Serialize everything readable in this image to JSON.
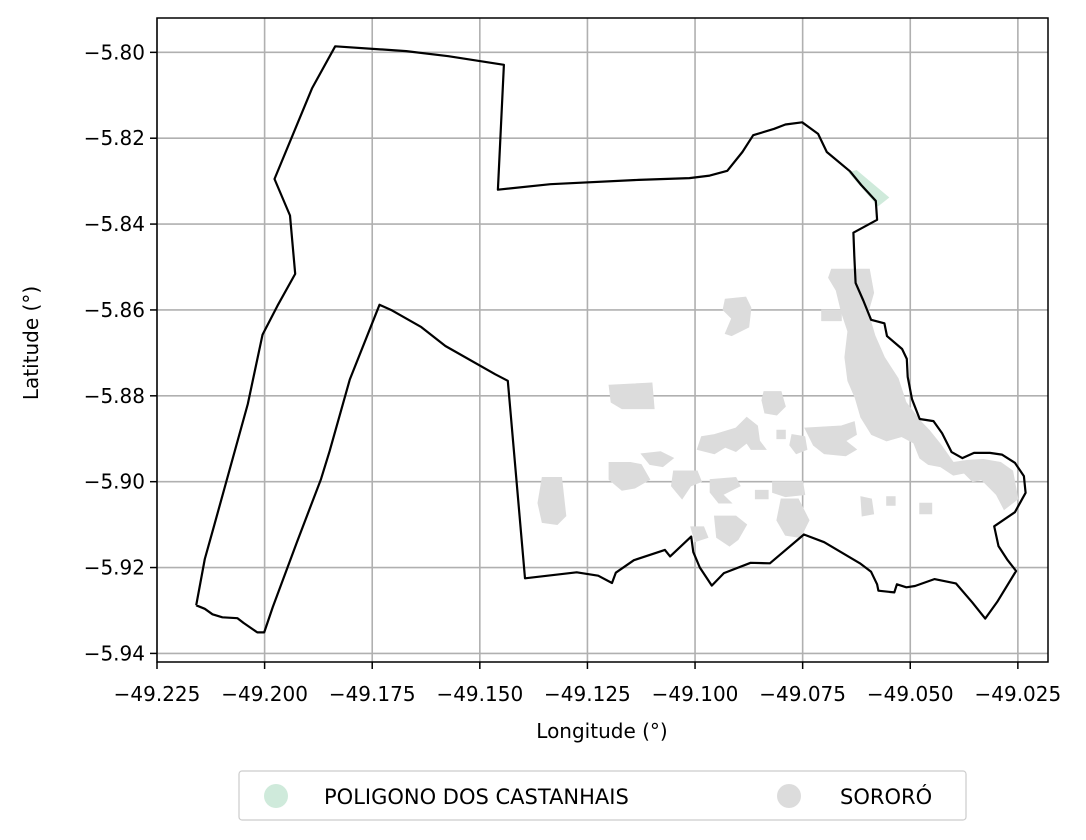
{
  "chart_data": {
    "type": "map",
    "xlabel": "Longitude (°)",
    "ylabel": "Latitude (°)",
    "xlim": [
      -49.225,
      -49.018
    ],
    "ylim": [
      -5.942,
      -5.792
    ],
    "x_ticks": [
      -49.225,
      -49.2,
      -49.175,
      -49.15,
      -49.125,
      -49.1,
      -49.075,
      -49.05,
      -49.025
    ],
    "x_tick_labels": [
      "−49.225",
      "−49.200",
      "−49.175",
      "−49.150",
      "−49.125",
      "−49.100",
      "−49.075",
      "−49.050",
      "−49.025"
    ],
    "y_ticks": [
      -5.8,
      -5.82,
      -5.84,
      -5.86,
      -5.88,
      -5.9,
      -5.92,
      -5.94
    ],
    "y_tick_labels": [
      "−5.80",
      "−5.82",
      "−5.84",
      "−5.86",
      "−5.88",
      "−5.90",
      "−5.92",
      "−5.94"
    ],
    "grid": true,
    "legend_placement": "bottom-center-outside",
    "legend": [
      {
        "label": "POLIGONO DOS CASTANHAIS",
        "color": "#cfeadb"
      },
      {
        "label": "SORORÓ",
        "color": "#dcdcdc"
      }
    ],
    "boundary_color": "#000000",
    "boundary": [
      [
        -49.2159,
        -5.9288
      ],
      [
        -49.2139,
        -5.9296
      ],
      [
        -49.2121,
        -5.9309
      ],
      [
        -49.2098,
        -5.9316
      ],
      [
        -49.2063,
        -5.9318
      ],
      [
        -49.2049,
        -5.9329
      ],
      [
        -49.2017,
        -5.9351
      ],
      [
        -49.2001,
        -5.9351
      ],
      [
        -49.1981,
        -5.9292
      ],
      [
        -49.1925,
        -5.9141
      ],
      [
        -49.1869,
        -5.8994
      ],
      [
        -49.1849,
        -5.8929
      ],
      [
        -49.1802,
        -5.8762
      ],
      [
        -49.1733,
        -5.8588
      ],
      [
        -49.1704,
        -5.8601
      ],
      [
        -49.1636,
        -5.864
      ],
      [
        -49.158,
        -5.8684
      ],
      [
        -49.1464,
        -5.875
      ],
      [
        -49.1435,
        -5.8765
      ],
      [
        -49.1395,
        -5.9225
      ],
      [
        -49.1275,
        -5.9211
      ],
      [
        -49.1225,
        -5.9219
      ],
      [
        -49.1193,
        -5.9236
      ],
      [
        -49.1184,
        -5.9212
      ],
      [
        -49.1142,
        -5.9183
      ],
      [
        -49.107,
        -5.9159
      ],
      [
        -49.1058,
        -5.9174
      ],
      [
        -49.1009,
        -5.9128
      ],
      [
        -49.1004,
        -5.9164
      ],
      [
        -49.0989,
        -5.92
      ],
      [
        -49.0961,
        -5.9242
      ],
      [
        -49.0933,
        -5.9213
      ],
      [
        -49.0871,
        -5.9189
      ],
      [
        -49.0826,
        -5.919
      ],
      [
        -49.0747,
        -5.9123
      ],
      [
        -49.07,
        -5.9141
      ],
      [
        -49.0617,
        -5.919
      ],
      [
        -49.0591,
        -5.921
      ],
      [
        -49.0577,
        -5.9239
      ],
      [
        -49.0574,
        -5.9254
      ],
      [
        -49.0537,
        -5.9258
      ],
      [
        -49.0531,
        -5.9239
      ],
      [
        -49.0509,
        -5.9246
      ],
      [
        -49.0489,
        -5.9243
      ],
      [
        -49.0444,
        -5.9227
      ],
      [
        -49.0394,
        -5.9237
      ],
      [
        -49.0356,
        -5.9281
      ],
      [
        -49.0326,
        -5.9319
      ],
      [
        -49.0298,
        -5.928
      ],
      [
        -49.0254,
        -5.9208
      ],
      [
        -49.0275,
        -5.9181
      ],
      [
        -49.0295,
        -5.915
      ],
      [
        -49.0305,
        -5.9104
      ],
      [
        -49.0257,
        -5.9071
      ],
      [
        -49.0232,
        -5.9026
      ],
      [
        -49.0236,
        -5.8987
      ],
      [
        -49.0257,
        -5.8956
      ],
      [
        -49.0287,
        -5.8937
      ],
      [
        -49.0315,
        -5.8933
      ],
      [
        -49.0352,
        -5.8933
      ],
      [
        -49.0379,
        -5.8945
      ],
      [
        -49.0404,
        -5.8931
      ],
      [
        -49.0426,
        -5.8887
      ],
      [
        -49.0446,
        -5.8859
      ],
      [
        -49.0478,
        -5.8854
      ],
      [
        -49.0496,
        -5.8808
      ],
      [
        -49.0506,
        -5.8756
      ],
      [
        -49.0508,
        -5.8714
      ],
      [
        -49.0519,
        -5.8691
      ],
      [
        -49.0554,
        -5.8661
      ],
      [
        -49.056,
        -5.8631
      ],
      [
        -49.0591,
        -5.8623
      ],
      [
        -49.0609,
        -5.8578
      ],
      [
        -49.0627,
        -5.8537
      ],
      [
        -49.063,
        -5.8474
      ],
      [
        -49.0632,
        -5.842
      ],
      [
        -49.0577,
        -5.839
      ],
      [
        -49.058,
        -5.8346
      ],
      [
        -49.0614,
        -5.8309
      ],
      [
        -49.064,
        -5.8277
      ],
      [
        -49.0694,
        -5.8232
      ],
      [
        -49.0714,
        -5.819
      ],
      [
        -49.0751,
        -5.8163
      ],
      [
        -49.079,
        -5.8168
      ],
      [
        -49.0816,
        -5.8178
      ],
      [
        -49.0865,
        -5.8193
      ],
      [
        -49.089,
        -5.8232
      ],
      [
        -49.0925,
        -5.8276
      ],
      [
        -49.0966,
        -5.8287
      ],
      [
        -49.1013,
        -5.8293
      ],
      [
        -49.1131,
        -5.8297
      ],
      [
        -49.1336,
        -5.8307
      ],
      [
        -49.1458,
        -5.832
      ],
      [
        -49.1444,
        -5.8029
      ],
      [
        -49.1573,
        -5.8009
      ],
      [
        -49.1671,
        -5.7997
      ],
      [
        -49.1836,
        -5.7986
      ],
      [
        -49.189,
        -5.8084
      ],
      [
        -49.1977,
        -5.8295
      ],
      [
        -49.1941,
        -5.838
      ],
      [
        -49.1929,
        -5.8516
      ],
      [
        -49.197,
        -5.859
      ],
      [
        -49.2005,
        -5.8658
      ],
      [
        -49.2039,
        -5.8819
      ],
      [
        -49.2118,
        -5.9105
      ],
      [
        -49.2139,
        -5.918
      ],
      [
        -49.2159,
        -5.9288
      ]
    ],
    "regions": [
      {
        "name": "POLIGONO DOS CASTANHAIS",
        "color": "#cfeadb",
        "polygons": [
          [
            [
              -49.0642,
              -5.828
            ],
            [
              -49.0575,
              -5.8358
            ],
            [
              -49.055,
              -5.8338
            ],
            [
              -49.0625,
              -5.8275
            ]
          ]
        ]
      },
      {
        "name": "SORORÓ",
        "color": "#dcdcdc",
        "polygons": [
          [
            [
              -49.0683,
              -5.8505
            ],
            [
              -49.0595,
              -5.8505
            ],
            [
              -49.0585,
              -5.856
            ],
            [
              -49.0598,
              -5.8605
            ],
            [
              -49.0582,
              -5.866
            ],
            [
              -49.056,
              -5.871
            ],
            [
              -49.0528,
              -5.876
            ],
            [
              -49.051,
              -5.8815
            ],
            [
              -49.0475,
              -5.886
            ],
            [
              -49.0456,
              -5.888
            ],
            [
              -49.0428,
              -5.8915
            ],
            [
              -49.04,
              -5.8955
            ],
            [
              -49.0365,
              -5.895
            ],
            [
              -49.033,
              -5.8948
            ],
            [
              -49.029,
              -5.8955
            ],
            [
              -49.0262,
              -5.8975
            ],
            [
              -49.025,
              -5.904
            ],
            [
              -49.0282,
              -5.9065
            ],
            [
              -49.03,
              -5.903
            ],
            [
              -49.0335,
              -5.8995
            ],
            [
              -49.0355,
              -5.9
            ],
            [
              -49.0375,
              -5.898
            ],
            [
              -49.04,
              -5.8985
            ],
            [
              -49.043,
              -5.8965
            ],
            [
              -49.0458,
              -5.896
            ],
            [
              -49.0478,
              -5.8945
            ],
            [
              -49.0492,
              -5.891
            ],
            [
              -49.052,
              -5.8895
            ],
            [
              -49.0555,
              -5.8905
            ],
            [
              -49.059,
              -5.889
            ],
            [
              -49.0615,
              -5.885
            ],
            [
              -49.0628,
              -5.8805
            ],
            [
              -49.0645,
              -5.8765
            ],
            [
              -49.0652,
              -5.871
            ],
            [
              -49.0645,
              -5.865
            ],
            [
              -49.066,
              -5.8605
            ],
            [
              -49.0672,
              -5.8555
            ],
            [
              -49.069,
              -5.8525
            ]
          ],
          [
            [
              -49.0706,
              -5.86
            ],
            [
              -49.066,
              -5.86
            ],
            [
              -49.066,
              -5.8625
            ],
            [
              -49.0706,
              -5.8625
            ]
          ],
          [
            [
              -49.0478,
              -5.905
            ],
            [
              -49.045,
              -5.905
            ],
            [
              -49.045,
              -5.9075
            ],
            [
              -49.0478,
              -5.9075
            ]
          ],
          [
            [
              -49.093,
              -5.8575
            ],
            [
              -49.0882,
              -5.857
            ],
            [
              -49.087,
              -5.8595
            ],
            [
              -49.0875,
              -5.864
            ],
            [
              -49.0915,
              -5.866
            ],
            [
              -49.093,
              -5.8655
            ],
            [
              -49.0915,
              -5.862
            ],
            [
              -49.0935,
              -5.86
            ]
          ],
          [
            [
              -49.12,
              -5.8775
            ],
            [
              -49.11,
              -5.877
            ],
            [
              -49.1095,
              -5.883
            ],
            [
              -49.117,
              -5.883
            ],
            [
              -49.1195,
              -5.8815
            ]
          ],
          [
            [
              -49.084,
              -5.879
            ],
            [
              -49.08,
              -5.879
            ],
            [
              -49.079,
              -5.8825
            ],
            [
              -49.081,
              -5.8845
            ],
            [
              -49.0838,
              -5.884
            ],
            [
              -49.0845,
              -5.881
            ]
          ],
          [
            [
              -49.0955,
              -5.889
            ],
            [
              -49.0905,
              -5.8875
            ],
            [
              -49.088,
              -5.885
            ],
            [
              -49.0855,
              -5.887
            ],
            [
              -49.085,
              -5.8905
            ],
            [
              -49.0835,
              -5.8925
            ],
            [
              -49.087,
              -5.8925
            ],
            [
              -49.088,
              -5.891
            ],
            [
              -49.0905,
              -5.893
            ],
            [
              -49.093,
              -5.892
            ],
            [
              -49.0955,
              -5.8935
            ],
            [
              -49.0995,
              -5.8925
            ],
            [
              -49.0985,
              -5.8895
            ]
          ],
          [
            [
              -49.0775,
              -5.889
            ],
            [
              -49.0745,
              -5.8895
            ],
            [
              -49.074,
              -5.8925
            ],
            [
              -49.0765,
              -5.8935
            ],
            [
              -49.078,
              -5.8915
            ]
          ],
          [
            [
              -49.081,
              -5.888
            ],
            [
              -49.079,
              -5.888
            ],
            [
              -49.079,
              -5.89
            ],
            [
              -49.081,
              -5.89
            ]
          ],
          [
            [
              -49.0745,
              -5.8875
            ],
            [
              -49.066,
              -5.887
            ],
            [
              -49.063,
              -5.886
            ],
            [
              -49.0625,
              -5.889
            ],
            [
              -49.065,
              -5.8905
            ],
            [
              -49.0625,
              -5.8925
            ],
            [
              -49.065,
              -5.894
            ],
            [
              -49.07,
              -5.8935
            ],
            [
              -49.0725,
              -5.8915
            ]
          ],
          [
            [
              -49.1355,
              -5.899
            ],
            [
              -49.131,
              -5.899
            ],
            [
              -49.13,
              -5.908
            ],
            [
              -49.132,
              -5.91
            ],
            [
              -49.1355,
              -5.9095
            ],
            [
              -49.1365,
              -5.905
            ]
          ],
          [
            [
              -49.12,
              -5.8955
            ],
            [
              -49.115,
              -5.8955
            ],
            [
              -49.1125,
              -5.896
            ],
            [
              -49.1105,
              -5.8995
            ],
            [
              -49.114,
              -5.9015
            ],
            [
              -49.117,
              -5.902
            ],
            [
              -49.12,
              -5.8995
            ]
          ],
          [
            [
              -49.1125,
              -5.8935
            ],
            [
              -49.108,
              -5.893
            ],
            [
              -49.105,
              -5.8945
            ],
            [
              -49.1075,
              -5.8965
            ],
            [
              -49.1105,
              -5.896
            ]
          ],
          [
            [
              -49.105,
              -5.8975
            ],
            [
              -49.0995,
              -5.8975
            ],
            [
              -49.0985,
              -5.9
            ],
            [
              -49.101,
              -5.901
            ],
            [
              -49.103,
              -5.904
            ],
            [
              -49.1055,
              -5.901
            ]
          ],
          [
            [
              -49.0965,
              -5.8995
            ],
            [
              -49.0905,
              -5.899
            ],
            [
              -49.0895,
              -5.901
            ],
            [
              -49.0935,
              -5.903
            ],
            [
              -49.0915,
              -5.905
            ],
            [
              -49.0945,
              -5.905
            ],
            [
              -49.0965,
              -5.9025
            ]
          ],
          [
            [
              -49.082,
              -5.9
            ],
            [
              -49.075,
              -5.9
            ],
            [
              -49.0745,
              -5.903
            ],
            [
              -49.079,
              -5.9035
            ],
            [
              -49.082,
              -5.9025
            ]
          ],
          [
            [
              -49.086,
              -5.902
            ],
            [
              -49.083,
              -5.902
            ],
            [
              -49.083,
              -5.904
            ],
            [
              -49.086,
              -5.904
            ]
          ],
          [
            [
              -49.0955,
              -5.908
            ],
            [
              -49.0905,
              -5.908
            ],
            [
              -49.088,
              -5.91
            ],
            [
              -49.09,
              -5.9135
            ],
            [
              -49.092,
              -5.915
            ],
            [
              -49.095,
              -5.913
            ]
          ],
          [
            [
              -49.101,
              -5.9105
            ],
            [
              -49.098,
              -5.9105
            ],
            [
              -49.097,
              -5.913
            ],
            [
              -49.1,
              -5.914
            ]
          ],
          [
            [
              -49.08,
              -5.904
            ],
            [
              -49.076,
              -5.904
            ],
            [
              -49.0735,
              -5.909
            ],
            [
              -49.0755,
              -5.913
            ],
            [
              -49.079,
              -5.9125
            ],
            [
              -49.081,
              -5.909
            ]
          ],
          [
            [
              -49.0615,
              -5.9035
            ],
            [
              -49.059,
              -5.904
            ],
            [
              -49.0585,
              -5.9075
            ],
            [
              -49.0612,
              -5.908
            ]
          ],
          [
            [
              -49.0555,
              -5.9035
            ],
            [
              -49.0535,
              -5.9035
            ],
            [
              -49.0535,
              -5.9055
            ],
            [
              -49.0555,
              -5.9055
            ]
          ]
        ]
      }
    ]
  }
}
